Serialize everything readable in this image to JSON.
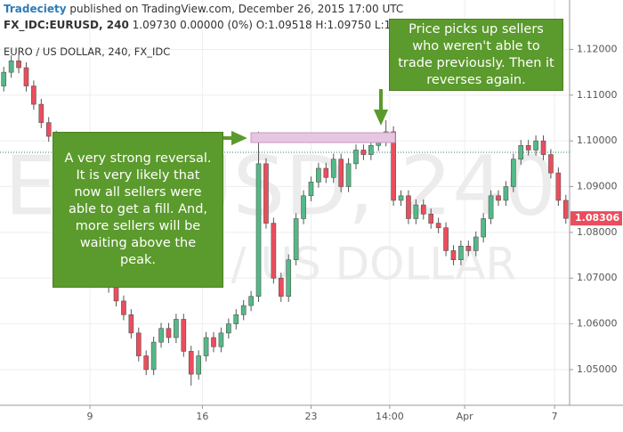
{
  "chart_data": {
    "type": "candlestick",
    "publisher": "Tradeciety",
    "published_line": "published on TradingView.com, December 26, 2015 17:00 UTC",
    "symbol_info": "FX_IDC:EURUSD, 240",
    "quote": "1.09730 0.00000 (0%) O:1.09518 H:1.09750 L:1.0",
    "title": "EURO / US DOLLAR, 240, FX_IDC",
    "watermark_main": "EURUSD, 240",
    "watermark_sub": "/ US DOLLAR",
    "callout_left": "A very strong reversal. It is very likely that now all sellers were able to get a fill. And, more sellers will be waiting above the peak.",
    "callout_right": "Price picks up sellers who weren't able to trade previously. Then it reverses again.",
    "up_color": "#53b987",
    "down_color": "#eb4d5c",
    "xlim": [
      -0.5,
      75.5
    ],
    "xticks": [
      {
        "value": 11.5,
        "label": "9"
      },
      {
        "value": 26.5,
        "label": "16"
      },
      {
        "value": 41,
        "label": "23"
      },
      {
        "value": 51.5,
        "label": "14:00"
      },
      {
        "value": 61.5,
        "label": "Apr"
      },
      {
        "value": 73.5,
        "label": "7"
      }
    ],
    "ylim": [
      1.0422,
      1.1308
    ],
    "yticks": [
      {
        "value": 1.05,
        "label": "1.05000"
      },
      {
        "value": 1.06,
        "label": "1.06000"
      },
      {
        "value": 1.07,
        "label": "1.07000"
      },
      {
        "value": 1.08,
        "label": "1.08000"
      },
      {
        "value": 1.09,
        "label": "1.09000"
      },
      {
        "value": 1.1,
        "label": "1.10000"
      },
      {
        "value": 1.11,
        "label": "1.11000"
      },
      {
        "value": 1.12,
        "label": "1.12000"
      }
    ],
    "grid": true,
    "reference_line": 1.0975,
    "last_price_label": "1.08306",
    "open": [
      1.112,
      1.115,
      1.1175,
      1.116,
      1.112,
      1.108,
      1.104,
      1.101,
      1.096,
      1.092,
      1.087,
      1.083,
      1.079,
      1.076,
      1.072,
      1.068,
      1.065,
      1.062,
      1.058,
      1.053,
      1.05,
      1.056,
      1.059,
      1.057,
      1.061,
      1.054,
      1.049,
      1.053,
      1.057,
      1.055,
      1.058,
      1.06,
      1.062,
      1.064,
      1.066,
      1.095,
      1.082,
      1.07,
      1.066,
      1.074,
      1.083,
      1.088,
      1.091,
      1.094,
      1.092,
      1.096,
      1.09,
      1.095,
      1.098,
      1.097,
      1.099,
      1.1,
      1.102,
      1.087,
      1.088,
      1.083,
      1.086,
      1.084,
      1.082,
      1.081,
      1.076,
      1.074,
      1.077,
      1.076,
      1.079,
      1.083,
      1.088,
      1.087,
      1.09,
      1.096,
      1.099,
      1.098,
      1.1,
      1.097,
      1.093,
      1.087
    ],
    "high": [
      1.1162,
      1.1187,
      1.1187,
      1.1172,
      1.1132,
      1.1092,
      1.1052,
      1.1022,
      1.0972,
      1.0932,
      1.0882,
      1.0842,
      1.0802,
      1.0772,
      1.0732,
      1.0692,
      1.0662,
      1.0632,
      1.0592,
      1.0542,
      1.0572,
      1.0602,
      1.0602,
      1.0622,
      1.0622,
      1.0552,
      1.0542,
      1.0582,
      1.0582,
      1.0592,
      1.0612,
      1.0632,
      1.0652,
      1.0672,
      1.102,
      1.0962,
      1.0832,
      1.0712,
      1.0752,
      1.0842,
      1.0892,
      1.0922,
      1.0952,
      1.0952,
      1.0972,
      1.0972,
      1.0962,
      1.0992,
      1.0992,
      1.1002,
      1.1012,
      1.1045,
      1.1032,
      1.0892,
      1.0892,
      1.0872,
      1.0872,
      1.0852,
      1.0832,
      1.0822,
      1.0772,
      1.0782,
      1.0782,
      1.0802,
      1.0842,
      1.0892,
      1.0892,
      1.0912,
      1.0972,
      1.1002,
      1.1002,
      1.1012,
      1.1012,
      1.0982,
      1.0942,
      1.0882
    ],
    "low": [
      1.1108,
      1.1138,
      1.1148,
      1.1108,
      1.1068,
      1.1028,
      1.0998,
      1.0948,
      1.0908,
      1.0858,
      1.0818,
      1.0778,
      1.0748,
      1.0708,
      1.0668,
      1.0638,
      1.0608,
      1.0568,
      1.0518,
      1.0488,
      1.0488,
      1.0548,
      1.0558,
      1.0558,
      1.0528,
      1.0465,
      1.0478,
      1.0518,
      1.0538,
      1.0538,
      1.0568,
      1.0588,
      1.0608,
      1.0628,
      1.0648,
      1.0808,
      1.0688,
      1.0648,
      1.0648,
      1.0728,
      1.0818,
      1.0868,
      1.0898,
      1.0908,
      1.0908,
      1.0888,
      1.0888,
      1.0938,
      1.0958,
      1.0958,
      1.0978,
      1.0988,
      1.0858,
      1.0858,
      1.0818,
      1.0818,
      1.0828,
      1.0808,
      1.0798,
      1.0748,
      1.0728,
      1.0728,
      1.0748,
      1.0748,
      1.0778,
      1.0818,
      1.0858,
      1.0858,
      1.0888,
      1.0948,
      1.0968,
      1.0968,
      1.0958,
      1.0918,
      1.0858,
      1.0819
    ],
    "close": [
      1.115,
      1.1175,
      1.116,
      1.112,
      1.108,
      1.104,
      1.101,
      1.096,
      1.092,
      1.087,
      1.083,
      1.079,
      1.076,
      1.072,
      1.068,
      1.065,
      1.062,
      1.058,
      1.053,
      1.05,
      1.056,
      1.059,
      1.057,
      1.061,
      1.054,
      1.049,
      1.053,
      1.057,
      1.055,
      1.058,
      1.06,
      1.062,
      1.064,
      1.066,
      1.095,
      1.082,
      1.07,
      1.066,
      1.074,
      1.083,
      1.088,
      1.091,
      1.094,
      1.092,
      1.096,
      1.09,
      1.095,
      1.098,
      1.097,
      1.099,
      1.1,
      1.102,
      1.087,
      1.088,
      1.083,
      1.086,
      1.084,
      1.082,
      1.081,
      1.076,
      1.074,
      1.077,
      1.076,
      1.079,
      1.083,
      1.088,
      1.087,
      1.09,
      1.096,
      1.099,
      1.098,
      1.1,
      1.097,
      1.093,
      1.087,
      1.08306
    ]
  }
}
